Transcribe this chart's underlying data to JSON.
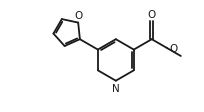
{
  "bg_color": "#ffffff",
  "line_color": "#1a1a1a",
  "line_width": 1.3,
  "font_size": 7.5,
  "figsize": [
    2.04,
    1.13
  ],
  "dpi": 100,
  "xlim": [
    0.0,
    10.2
  ],
  "ylim": [
    0.0,
    5.65
  ]
}
